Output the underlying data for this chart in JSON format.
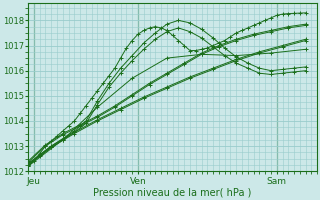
{
  "xlabel": "Pression niveau de la mer( hPa )",
  "ylim": [
    1012,
    1018.7
  ],
  "xlim": [
    0,
    50
  ],
  "xtick_positions": [
    1,
    19,
    43
  ],
  "xtick_labels": [
    "Jeu",
    "Ven",
    "Sam"
  ],
  "ytick_positions": [
    1012,
    1013,
    1014,
    1015,
    1016,
    1017,
    1018
  ],
  "bg_color": "#cce8e8",
  "grid_color": "#99cccc",
  "line_color": "#1a6e1a",
  "marker": "+",
  "series": [
    {
      "x": [
        0,
        1,
        2,
        3,
        4,
        5,
        6,
        7,
        8,
        9,
        10,
        11,
        12,
        13,
        14,
        15,
        16,
        17,
        18,
        19,
        20,
        21,
        22,
        23,
        24,
        25,
        26,
        27,
        28,
        29,
        30,
        31,
        32,
        33,
        34,
        35,
        36,
        37,
        38,
        39,
        40,
        41,
        42,
        43,
        44,
        45,
        46,
        47,
        48
      ],
      "y": [
        1012.2,
        1012.4,
        1012.7,
        1013.0,
        1013.2,
        1013.4,
        1013.6,
        1013.8,
        1014.0,
        1014.3,
        1014.6,
        1014.9,
        1015.2,
        1015.5,
        1015.8,
        1016.1,
        1016.5,
        1016.9,
        1017.2,
        1017.45,
        1017.6,
        1017.7,
        1017.75,
        1017.7,
        1017.6,
        1017.4,
        1017.2,
        1017.0,
        1016.8,
        1016.8,
        1016.85,
        1016.9,
        1017.0,
        1017.1,
        1017.2,
        1017.35,
        1017.5,
        1017.6,
        1017.7,
        1017.8,
        1017.9,
        1018.0,
        1018.1,
        1018.2,
        1018.25,
        1018.27,
        1018.28,
        1018.29,
        1018.3
      ]
    },
    {
      "x": [
        0,
        2,
        4,
        6,
        8,
        10,
        12,
        14,
        16,
        18,
        20,
        22,
        24,
        26,
        28,
        30,
        32,
        34,
        36,
        38,
        40,
        42,
        44,
        46,
        48
      ],
      "y": [
        1012.3,
        1012.65,
        1013.0,
        1013.3,
        1013.6,
        1014.0,
        1014.8,
        1015.5,
        1016.1,
        1016.6,
        1017.1,
        1017.5,
        1017.85,
        1018.0,
        1017.9,
        1017.65,
        1017.3,
        1016.9,
        1016.55,
        1016.3,
        1016.1,
        1016.0,
        1016.05,
        1016.1,
        1016.15
      ]
    },
    {
      "x": [
        0,
        2,
        4,
        6,
        8,
        10,
        12,
        14,
        16,
        18,
        20,
        22,
        24,
        26,
        28,
        30,
        32,
        34,
        36,
        38,
        40,
        42,
        44,
        46,
        48
      ],
      "y": [
        1012.25,
        1012.6,
        1012.95,
        1013.25,
        1013.55,
        1013.9,
        1014.65,
        1015.35,
        1015.9,
        1016.4,
        1016.85,
        1017.25,
        1017.55,
        1017.7,
        1017.55,
        1017.3,
        1016.95,
        1016.6,
        1016.3,
        1016.1,
        1015.9,
        1015.85,
        1015.9,
        1015.95,
        1016.0
      ]
    },
    {
      "x": [
        0,
        3,
        6,
        9,
        12,
        15,
        18,
        21,
        24,
        27,
        30,
        33,
        36,
        39,
        42,
        45,
        48
      ],
      "y": [
        1012.4,
        1013.05,
        1013.5,
        1013.85,
        1014.2,
        1014.6,
        1015.05,
        1015.5,
        1015.9,
        1016.3,
        1016.7,
        1017.0,
        1017.25,
        1017.45,
        1017.6,
        1017.75,
        1017.85
      ]
    },
    {
      "x": [
        0,
        3,
        6,
        9,
        12,
        15,
        18,
        21,
        24,
        27,
        30,
        33,
        36,
        39,
        42,
        45,
        48
      ],
      "y": [
        1012.35,
        1013.0,
        1013.45,
        1013.8,
        1014.15,
        1014.55,
        1015.0,
        1015.45,
        1015.85,
        1016.25,
        1016.65,
        1016.95,
        1017.2,
        1017.4,
        1017.55,
        1017.7,
        1017.8
      ]
    },
    {
      "x": [
        0,
        4,
        8,
        12,
        16,
        20,
        24,
        28,
        32,
        36,
        40,
        44,
        48
      ],
      "y": [
        1012.3,
        1013.0,
        1013.55,
        1014.05,
        1014.5,
        1014.95,
        1015.35,
        1015.75,
        1016.1,
        1016.45,
        1016.75,
        1017.0,
        1017.25
      ]
    },
    {
      "x": [
        0,
        4,
        8,
        12,
        16,
        20,
        24,
        28,
        32,
        36,
        40,
        44,
        48
      ],
      "y": [
        1012.25,
        1012.95,
        1013.5,
        1014.0,
        1014.45,
        1014.9,
        1015.3,
        1015.7,
        1016.05,
        1016.4,
        1016.7,
        1016.95,
        1017.2
      ]
    },
    {
      "x": [
        0,
        6,
        12,
        18,
        24,
        30,
        36,
        42,
        48
      ],
      "y": [
        1012.2,
        1013.25,
        1014.55,
        1015.7,
        1016.5,
        1016.65,
        1016.6,
        1016.7,
        1016.85
      ]
    }
  ]
}
